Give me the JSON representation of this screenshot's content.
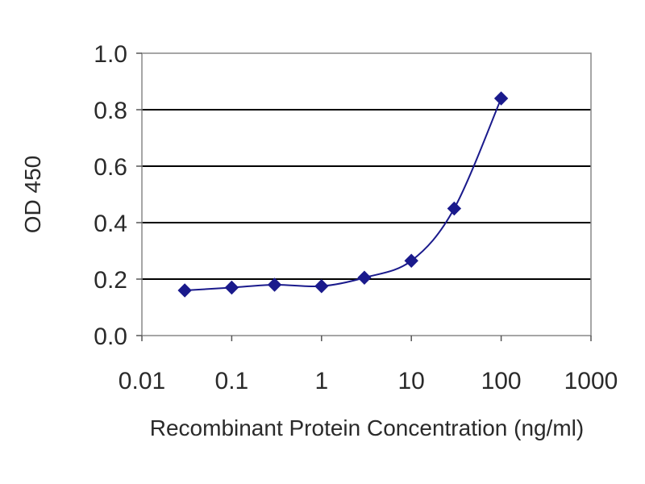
{
  "chart_data": {
    "type": "line",
    "title": "",
    "xlabel": "Recombinant Protein Concentration (ng/ml)",
    "ylabel": "OD 450",
    "x_scale": "log",
    "xlim": [
      0.01,
      1000
    ],
    "ylim": [
      0,
      1.0
    ],
    "x_ticks": [
      "0.01",
      "0.1",
      "1",
      "10",
      "100",
      "1000"
    ],
    "y_ticks": [
      "0.0",
      "0.2",
      "0.4",
      "0.6",
      "0.8",
      "1.0"
    ],
    "grid": "horizontal",
    "legend": "none",
    "colors": {
      "series": "#1a1a8c",
      "grid": "#000000",
      "plot_bg": "#ffffff"
    },
    "series": [
      {
        "x": [
          0.03,
          0.1,
          0.3,
          1,
          3,
          10,
          30,
          100
        ],
        "y": [
          0.16,
          0.17,
          0.18,
          0.175,
          0.205,
          0.265,
          0.45,
          0.84
        ]
      }
    ]
  }
}
